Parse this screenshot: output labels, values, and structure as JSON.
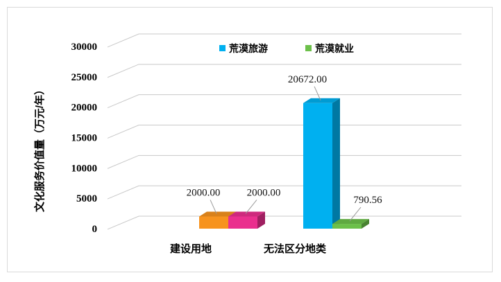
{
  "chart_data": {
    "type": "bar",
    "ylabel": "文化服务价值量（万元/年）",
    "ylim": [
      0,
      30000
    ],
    "yticks": [
      0,
      5000,
      10000,
      15000,
      20000,
      25000,
      30000
    ],
    "grid": true,
    "legend_position": "top-right",
    "categories": [
      "建设用地",
      "无法区分地类"
    ],
    "series": [
      {
        "name": "荒漠旅游",
        "points": [
          {
            "category": "建设用地",
            "value": 2000.0,
            "label": "2000.00",
            "color": "#f7931e"
          },
          {
            "category": "无法区分地类",
            "value": 20672.0,
            "label": "20672.00",
            "color": "#00b0f0"
          }
        ],
        "legend_color": "#00b0f0"
      },
      {
        "name": "荒漠就业",
        "points": [
          {
            "category": "建设用地",
            "value": 2000.0,
            "label": "2000.00",
            "color": "#ea2f8e"
          },
          {
            "category": "无法区分地类",
            "value": 790.56,
            "label": "790.56",
            "color": "#6cc04a"
          }
        ],
        "legend_color": "#6cc04a"
      }
    ]
  }
}
